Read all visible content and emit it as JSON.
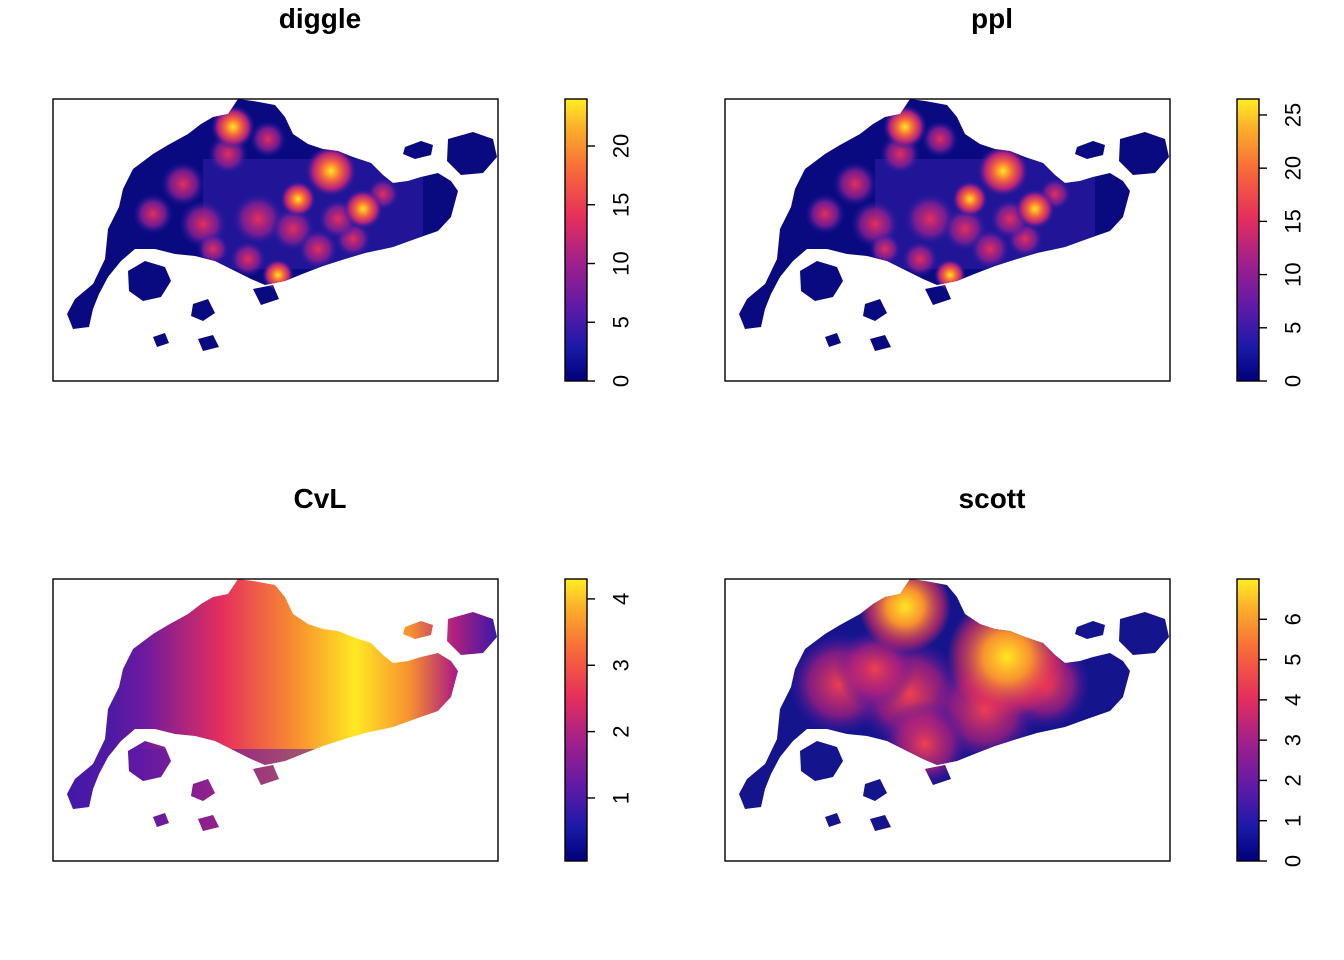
{
  "chart_data": [
    {
      "type": "heatmap",
      "title": "diggle",
      "xlabel": "",
      "ylabel": "",
      "colorbar": {
        "range": [
          0,
          24
        ],
        "ticks": [
          0,
          5,
          10,
          15,
          20
        ]
      },
      "colormap": "plasma-like (navy → purple → red → orange → yellow)",
      "axes": "none",
      "grid": false
    },
    {
      "type": "heatmap",
      "title": "ppl",
      "xlabel": "",
      "ylabel": "",
      "colorbar": {
        "range": [
          0,
          26.5
        ],
        "ticks": [
          0,
          5,
          10,
          15,
          20,
          25
        ]
      },
      "colormap": "plasma-like (navy → purple → red → orange → yellow)",
      "axes": "none",
      "grid": false
    },
    {
      "type": "heatmap",
      "title": "CvL",
      "xlabel": "",
      "ylabel": "",
      "colorbar": {
        "range": [
          0.05,
          4.3
        ],
        "ticks": [
          1,
          2,
          3,
          4
        ]
      },
      "colormap": "plasma-like (navy → purple → red → orange → yellow)",
      "axes": "none",
      "grid": false
    },
    {
      "type": "heatmap",
      "title": "scott",
      "xlabel": "",
      "ylabel": "",
      "colorbar": {
        "range": [
          0,
          7
        ],
        "ticks": [
          0,
          1,
          2,
          3,
          4,
          5,
          6
        ]
      },
      "colormap": "plasma-like (navy → purple → red → orange → yellow)",
      "axes": "none",
      "grid": false
    }
  ]
}
